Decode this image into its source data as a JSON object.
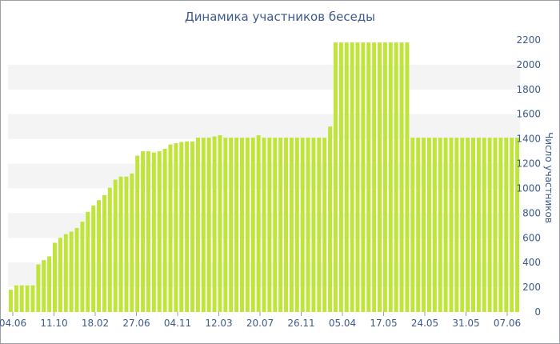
{
  "chart_data": {
    "type": "bar",
    "title": "Динамика участников беседы",
    "xlabel": "",
    "ylabel": "Число участников",
    "ylim": [
      0,
      2200
    ],
    "y_ticks": [
      0,
      200,
      400,
      600,
      800,
      1000,
      1200,
      1400,
      1600,
      1800,
      2000,
      2200
    ],
    "x_tick_labels": [
      "04.06",
      "11.10",
      "18.02",
      "27.06",
      "04.11",
      "12.03",
      "20.07",
      "26.11",
      "05.04",
      "17.05",
      "24.05",
      "31.05",
      "07.06"
    ],
    "bar_color": "#bfe43a",
    "grid": "alternating horizontal bands",
    "values": [
      180,
      215,
      215,
      215,
      215,
      385,
      420,
      450,
      560,
      600,
      630,
      650,
      680,
      730,
      810,
      860,
      905,
      945,
      1005,
      1070,
      1095,
      1095,
      1120,
      1265,
      1300,
      1300,
      1290,
      1300,
      1320,
      1355,
      1365,
      1375,
      1380,
      1380,
      1410,
      1410,
      1410,
      1420,
      1430,
      1410,
      1410,
      1410,
      1410,
      1410,
      1410,
      1430,
      1410,
      1410,
      1410,
      1410,
      1410,
      1410,
      1410,
      1410,
      1410,
      1410,
      1410,
      1410,
      1500,
      2180,
      2180,
      2180,
      2180,
      2180,
      2180,
      2180,
      2180,
      2180,
      2180,
      2180,
      2180,
      2180,
      2180,
      1410,
      1410,
      1410,
      1410,
      1410,
      1410,
      1410,
      1410,
      1410,
      1410,
      1410,
      1410,
      1410,
      1410,
      1410,
      1410,
      1410,
      1410,
      1410,
      1410
    ]
  }
}
